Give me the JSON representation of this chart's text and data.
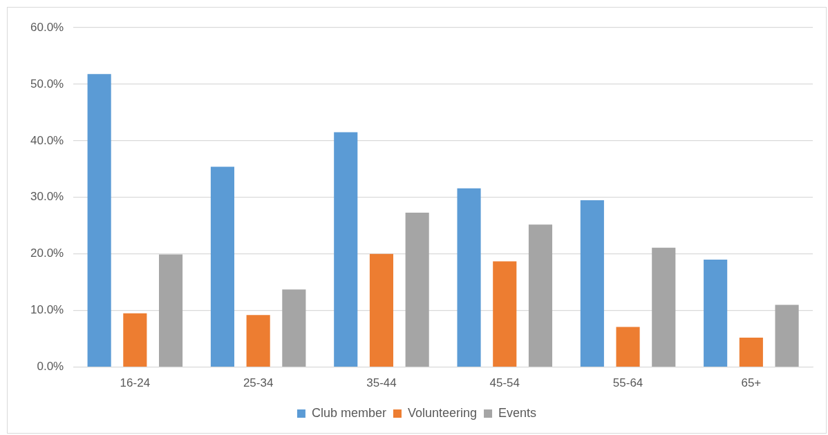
{
  "chart_data": {
    "type": "bar",
    "categories": [
      "16-24",
      "25-34",
      "35-44",
      "45-54",
      "55-64",
      "65+"
    ],
    "series": [
      {
        "name": "Club member",
        "color": "#5b9bd5",
        "values": [
          51.8,
          35.4,
          41.5,
          31.6,
          29.5,
          19.0
        ]
      },
      {
        "name": "Volunteering",
        "color": "#ed7d31",
        "values": [
          9.5,
          9.2,
          20.0,
          18.7,
          7.1,
          5.2
        ]
      },
      {
        "name": "Events",
        "color": "#a5a5a5",
        "values": [
          19.9,
          13.7,
          27.3,
          25.2,
          21.1,
          11.0
        ]
      }
    ],
    "ylim": [
      0,
      60
    ],
    "yticks": [
      {
        "value": 0,
        "label": "0.0%"
      },
      {
        "value": 10,
        "label": "10.0%"
      },
      {
        "value": 20,
        "label": "20.0%"
      },
      {
        "value": 30,
        "label": "30.0%"
      },
      {
        "value": 40,
        "label": "40.0%"
      },
      {
        "value": 50,
        "label": "50.0%"
      },
      {
        "value": 60,
        "label": "60.0%"
      }
    ],
    "grid": "y",
    "legend": "bottom"
  }
}
